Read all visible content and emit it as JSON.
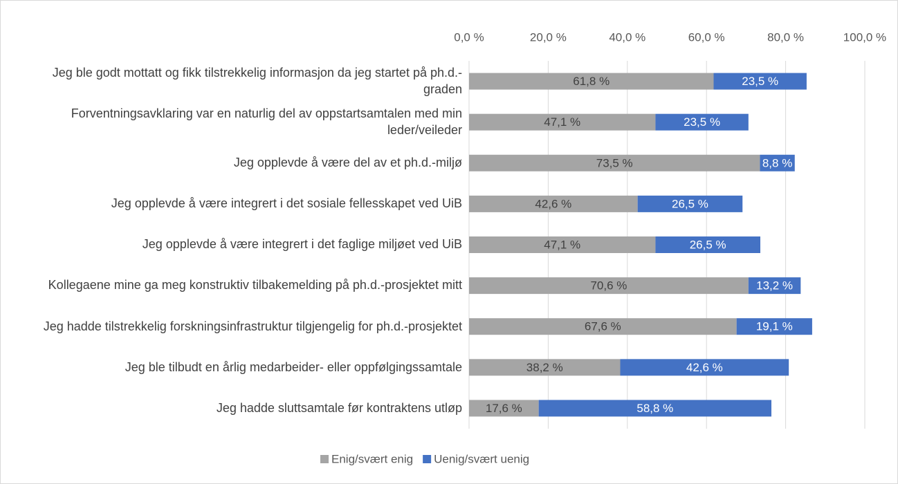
{
  "chart_data": {
    "type": "stacked_barh",
    "categories": [
      "Jeg ble godt mottatt og fikk tilstrekkelig informasjon da jeg startet på ph.d.-graden",
      "Forventningsavklaring var en naturlig del av oppstartsamtalen med min leder/veileder",
      "Jeg opplevde å være del av et ph.d.-miljø",
      "Jeg opplevde å være integrert i det sosiale fellesskapet ved UiB",
      "Jeg opplevde å være integrert i det faglige miljøet ved UiB",
      "Kollegaene mine ga meg konstruktiv tilbakemelding på ph.d.-prosjektet mitt",
      "Jeg hadde tilstrekkelig forskningsinfrastruktur tilgjengelig for ph.d.-prosjektet",
      "Jeg ble tilbudt en årlig medarbeider- eller oppfølgingssamtale",
      "Jeg hadde sluttsamtale før kontraktens utløp"
    ],
    "series": [
      {
        "name": "Enig/svært enig",
        "color": "#a5a5a5",
        "values": [
          61.8,
          47.1,
          73.5,
          42.6,
          47.1,
          70.6,
          67.6,
          38.2,
          17.6
        ],
        "value_labels": [
          "61,8 %",
          "47,1 %",
          "73,5 %",
          "42,6 %",
          "47,1 %",
          "70,6 %",
          "67,6 %",
          "38,2 %",
          "17,6 %"
        ]
      },
      {
        "name": "Uenig/svært uenig",
        "color": "#4472c4",
        "values": [
          23.5,
          23.5,
          8.8,
          26.5,
          26.5,
          13.2,
          19.1,
          42.6,
          58.8
        ],
        "value_labels": [
          "23,5 %",
          "23,5 %",
          "8,8 %",
          "26,5 %",
          "26,5 %",
          "13,2 %",
          "19,1 %",
          "42,6 %",
          "58,8 %"
        ]
      }
    ],
    "xlim": [
      0,
      100
    ],
    "xticks": [
      {
        "value": 0,
        "label": "0,0 %"
      },
      {
        "value": 20,
        "label": "20,0 %"
      },
      {
        "value": 40,
        "label": "40,0 %"
      },
      {
        "value": 60,
        "label": "60,0 %"
      },
      {
        "value": 80,
        "label": "80,0 %"
      },
      {
        "value": 100,
        "label": "100,0 %"
      }
    ],
    "grid": true,
    "legend": "bottom"
  }
}
